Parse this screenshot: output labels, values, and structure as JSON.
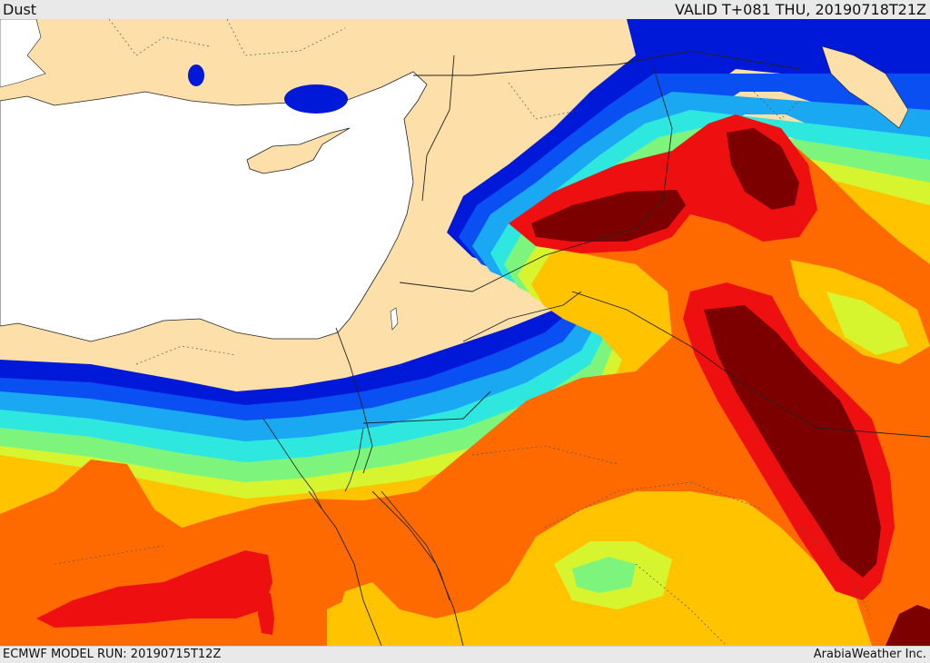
{
  "header": {
    "product_title": "Dust",
    "valid_label": "VALID T+081 THU, 20190718T21Z"
  },
  "footer": {
    "model_run_label": "ECMWF MODEL RUN: 20190715T12Z",
    "credit": "ArabiaWeather Inc."
  },
  "map": {
    "colors": {
      "land": "#fde0a9",
      "sea": "#ffffff",
      "dust_blue_dark": "#0019d8",
      "dust_blue": "#0a4ff2",
      "dust_lightblue": "#1aa8f2",
      "dust_cyan": "#2ee8e0",
      "dust_green": "#7df57d",
      "dust_yellowgreen": "#d6f52e",
      "dust_yellow": "#ffc300",
      "dust_orange": "#ff6a00",
      "dust_red": "#ee1010",
      "dust_darkred": "#7d0000",
      "border": "#222222",
      "province_line": "#555555"
    }
  }
}
